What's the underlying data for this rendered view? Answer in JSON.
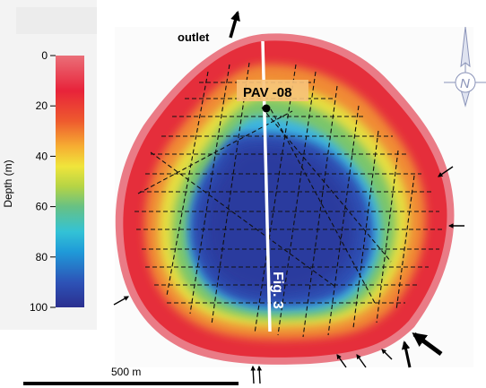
{
  "map": {
    "outlet_label": "outlet",
    "site_label": "PAV -08",
    "profile_label": "Fig. 3"
  },
  "colorbar": {
    "axis_label": "Depth (m)",
    "ticks": [
      "0",
      "20",
      "40",
      "60",
      "80",
      "100"
    ],
    "min": 0,
    "max": 100,
    "colors": [
      "#2b2f8f",
      "#2d53b7",
      "#1f9ad8",
      "#33c2d6",
      "#67c184",
      "#b5d445",
      "#f0e53b",
      "#f6ad32",
      "#ee5a2e",
      "#e8233a",
      "#ea6f78"
    ]
  },
  "scalebar": {
    "label": "500 m"
  },
  "north_arrow": {
    "letter": "N",
    "icon": "north-arrow-icon"
  },
  "colors": {
    "deep": "#2b3a9e",
    "shore": "#e33a36",
    "survey_line": "#111111",
    "profile_line": "#ffffff"
  }
}
